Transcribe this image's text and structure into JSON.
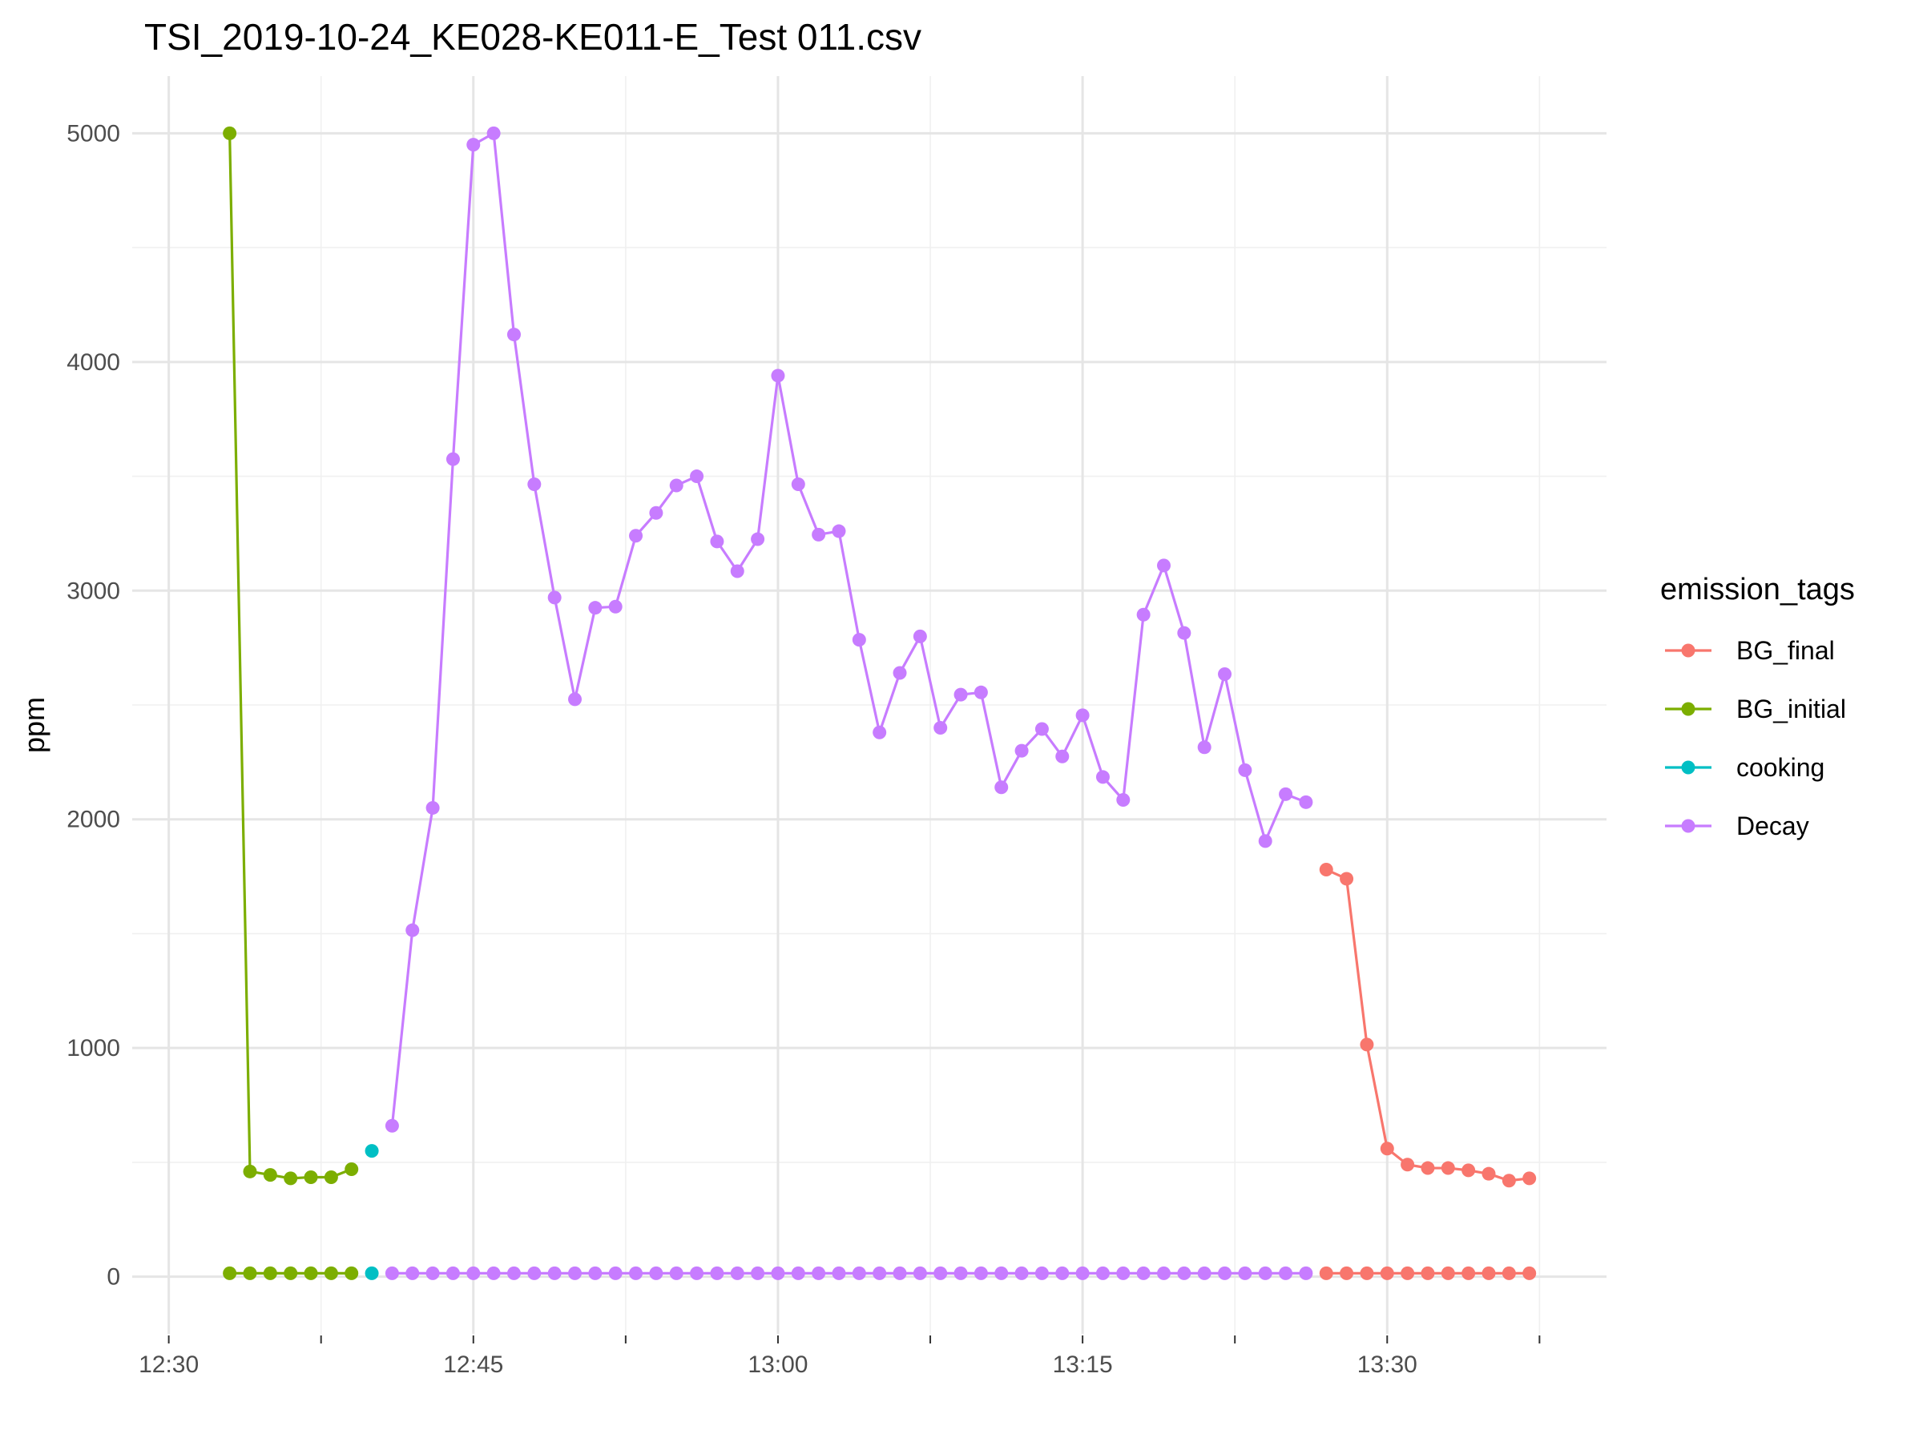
{
  "chart_data": {
    "type": "line",
    "title": "TSI_2019-10-24_KE028-KE011-E_Test 011.csv",
    "xlabel": "",
    "ylabel": "ppm",
    "x_unit": "time",
    "xlim": [
      "12:30",
      "13:39"
    ],
    "ylim": [
      -250,
      5250
    ],
    "x_ticks": [
      "12:30",
      "12:45",
      "13:00",
      "13:15",
      "13:30"
    ],
    "y_ticks": [
      0,
      1000,
      2000,
      3000,
      4000,
      5000
    ],
    "grid": true,
    "legend": {
      "title": "emission_tags",
      "position": "right"
    },
    "series": [
      {
        "name": "BG_final",
        "color": "#F8766D",
        "x": [
          "13:27",
          "13:28",
          "13:29",
          "13:30",
          "13:31",
          "13:32",
          "13:33",
          "13:34",
          "13:35",
          "13:36",
          "13:37"
        ],
        "values": [
          1780,
          1740,
          1015,
          560,
          490,
          475,
          475,
          465,
          450,
          420,
          430
        ],
        "baseline": 15
      },
      {
        "name": "BG_initial",
        "color": "#7CAE00",
        "x": [
          "12:33",
          "12:34",
          "12:35",
          "12:36",
          "12:37",
          "12:38",
          "12:39"
        ],
        "values": [
          5000,
          460,
          445,
          430,
          435,
          435,
          470
        ],
        "baseline": 15
      },
      {
        "name": "cooking",
        "color": "#00BFC4",
        "x": [
          "12:40"
        ],
        "values": [
          550
        ],
        "baseline": 15
      },
      {
        "name": "Decay",
        "color": "#C77CFF",
        "x": [
          "12:41",
          "12:42",
          "12:43",
          "12:44",
          "12:45",
          "12:46",
          "12:47",
          "12:48",
          "12:49",
          "12:50",
          "12:51",
          "12:52",
          "12:53",
          "12:54",
          "12:55",
          "12:56",
          "12:57",
          "12:58",
          "12:59",
          "13:00",
          "13:01",
          "13:02",
          "13:03",
          "13:04",
          "13:05",
          "13:06",
          "13:07",
          "13:08",
          "13:09",
          "13:10",
          "13:11",
          "13:12",
          "13:13",
          "13:14",
          "13:15",
          "13:16",
          "13:17",
          "13:18",
          "13:19",
          "13:20",
          "13:21",
          "13:22",
          "13:23",
          "13:24",
          "13:25",
          "13:26"
        ],
        "values": [
          660,
          1515,
          2050,
          3575,
          4950,
          5000,
          4120,
          3465,
          2970,
          2525,
          2925,
          2930,
          3240,
          3340,
          3460,
          3500,
          3215,
          3085,
          3225,
          3940,
          3465,
          3245,
          3260,
          2785,
          2380,
          2640,
          2800,
          2400,
          2545,
          2555,
          2140,
          2300,
          2395,
          2275,
          2455,
          2185,
          2085,
          2895,
          3110,
          2815,
          2315,
          2635,
          2215,
          1905,
          2110,
          2075
        ],
        "baseline": 15
      }
    ]
  }
}
